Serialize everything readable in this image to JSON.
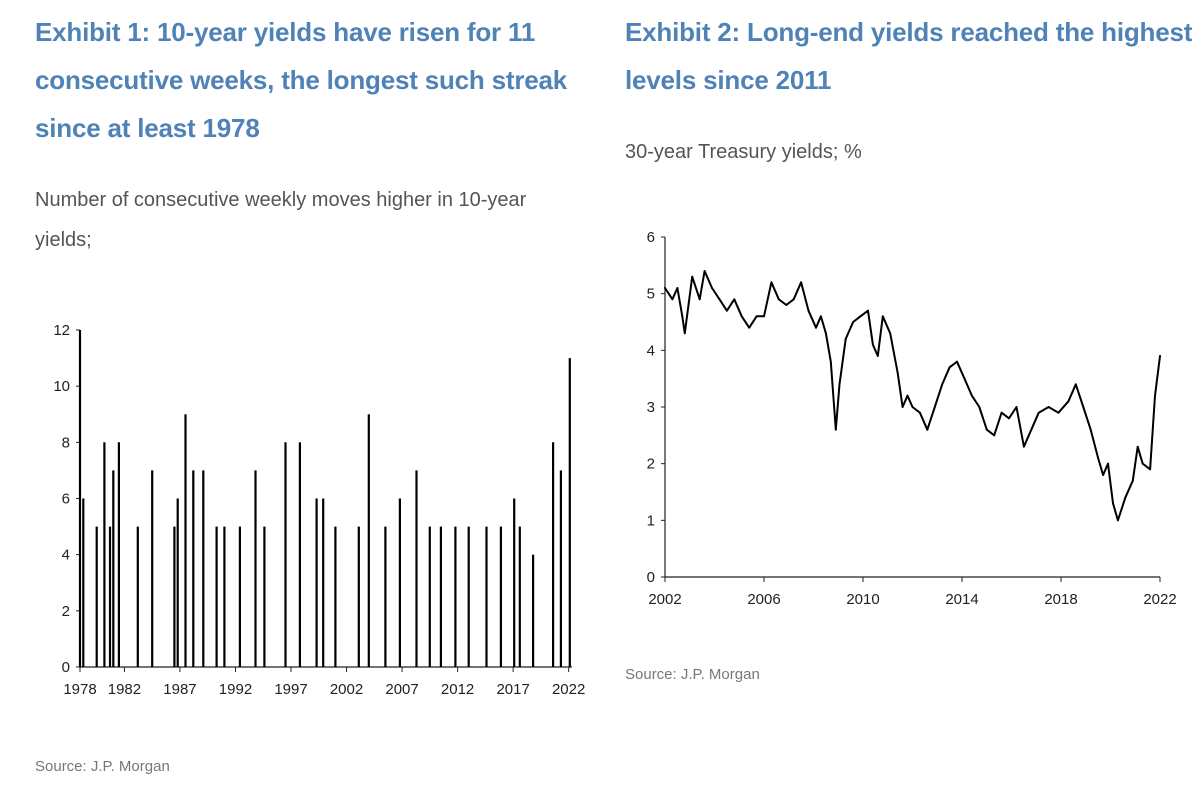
{
  "exhibit1": {
    "title": "Exhibit 1: 10-year yields have risen for 11 consecutive weeks, the longest such streak since at least 1978",
    "subtitle": "Number of consecutive weekly moves higher in 10-year yields;",
    "source": "Source: J.P. Morgan"
  },
  "exhibit2": {
    "title": "Exhibit 2: Long-end yields reached the highest levels since 2011",
    "subtitle": "30-year Treasury yields; %",
    "source": "Source: J.P. Morgan"
  },
  "colors": {
    "title": "#4f82b6",
    "text": "#555555",
    "series": "#000000",
    "axis": "#222222"
  },
  "chart_data": [
    {
      "type": "bar",
      "title": "Exhibit 1: 10-year yields have risen for 11 consecutive weeks, the longest such streak since at least 1978",
      "xlabel": "",
      "ylabel": "",
      "xlim": [
        1978,
        2022.3
      ],
      "ylim": [
        0,
        12
      ],
      "yticks": [
        0,
        2,
        4,
        6,
        8,
        10,
        12
      ],
      "xticks": [
        1978,
        1982,
        1987,
        1992,
        1997,
        2002,
        2007,
        2012,
        2017,
        2022
      ],
      "grid": false,
      "legend": "none",
      "description_of_values": "Selected approximate streak peaks read from the chart; underlying bars are weekly",
      "x": [
        1978.0,
        1978.3,
        1979.5,
        1980.2,
        1980.7,
        1981.0,
        1981.5,
        1983.2,
        1984.5,
        1986.5,
        1986.8,
        1987.5,
        1988.2,
        1989.1,
        1990.3,
        1991.0,
        1992.4,
        1993.8,
        1994.6,
        1996.5,
        1997.8,
        1999.3,
        1999.9,
        2001.0,
        2003.1,
        2004.0,
        2005.5,
        2006.8,
        2008.3,
        2009.5,
        2010.5,
        2011.8,
        2013.0,
        2014.6,
        2015.9,
        2017.1,
        2017.6,
        2018.8,
        2020.6,
        2021.3,
        2022.1
      ],
      "values": [
        12,
        6,
        5,
        8,
        5,
        7,
        8,
        5,
        7,
        5,
        6,
        9,
        7,
        7,
        5,
        5,
        5,
        7,
        5,
        8,
        8,
        6,
        6,
        5,
        5,
        9,
        5,
        6,
        7,
        5,
        5,
        5,
        5,
        5,
        5,
        6,
        5,
        4,
        8,
        7,
        11
      ]
    },
    {
      "type": "line",
      "title": "Exhibit 2: Long-end yields reached the highest levels since 2011",
      "subtitle": "30-year Treasury yields; %",
      "xlabel": "",
      "ylabel": "",
      "xlim": [
        2002,
        2022
      ],
      "ylim": [
        0,
        6
      ],
      "yticks": [
        0,
        1,
        2,
        3,
        4,
        5,
        6
      ],
      "xticks": [
        2002,
        2006,
        2010,
        2014,
        2018,
        2022
      ],
      "grid": false,
      "legend": "none",
      "x": [
        2002.0,
        2002.3,
        2002.5,
        2002.7,
        2002.8,
        2003.1,
        2003.4,
        2003.6,
        2003.9,
        2004.2,
        2004.5,
        2004.8,
        2005.1,
        2005.4,
        2005.7,
        2006.0,
        2006.3,
        2006.6,
        2006.9,
        2007.2,
        2007.5,
        2007.8,
        2008.1,
        2008.3,
        2008.5,
        2008.7,
        2008.9,
        2009.05,
        2009.3,
        2009.6,
        2009.9,
        2010.2,
        2010.4,
        2010.6,
        2010.8,
        2011.1,
        2011.4,
        2011.6,
        2011.8,
        2012.0,
        2012.3,
        2012.6,
        2012.9,
        2013.2,
        2013.5,
        2013.8,
        2014.1,
        2014.4,
        2014.7,
        2015.0,
        2015.3,
        2015.6,
        2015.9,
        2016.2,
        2016.5,
        2016.8,
        2017.1,
        2017.5,
        2017.9,
        2018.3,
        2018.6,
        2018.9,
        2019.2,
        2019.5,
        2019.7,
        2019.9,
        2020.1,
        2020.3,
        2020.6,
        2020.9,
        2021.1,
        2021.3,
        2021.6,
        2021.8,
        2022.0
      ],
      "values": [
        5.1,
        4.9,
        5.1,
        4.6,
        4.3,
        5.3,
        4.9,
        5.4,
        5.1,
        4.9,
        4.7,
        4.9,
        4.6,
        4.4,
        4.6,
        4.6,
        5.2,
        4.9,
        4.8,
        4.9,
        5.2,
        4.7,
        4.4,
        4.6,
        4.3,
        3.8,
        2.6,
        3.4,
        4.2,
        4.5,
        4.6,
        4.7,
        4.1,
        3.9,
        4.6,
        4.3,
        3.6,
        3.0,
        3.2,
        3.0,
        2.9,
        2.6,
        3.0,
        3.4,
        3.7,
        3.8,
        3.5,
        3.2,
        3.0,
        2.6,
        2.5,
        2.9,
        2.8,
        3.0,
        2.3,
        2.6,
        2.9,
        3.0,
        2.9,
        3.1,
        3.4,
        3.0,
        2.6,
        2.1,
        1.8,
        2.0,
        1.3,
        1.0,
        1.4,
        1.7,
        2.3,
        2.0,
        1.9,
        3.2,
        3.9
      ]
    }
  ]
}
